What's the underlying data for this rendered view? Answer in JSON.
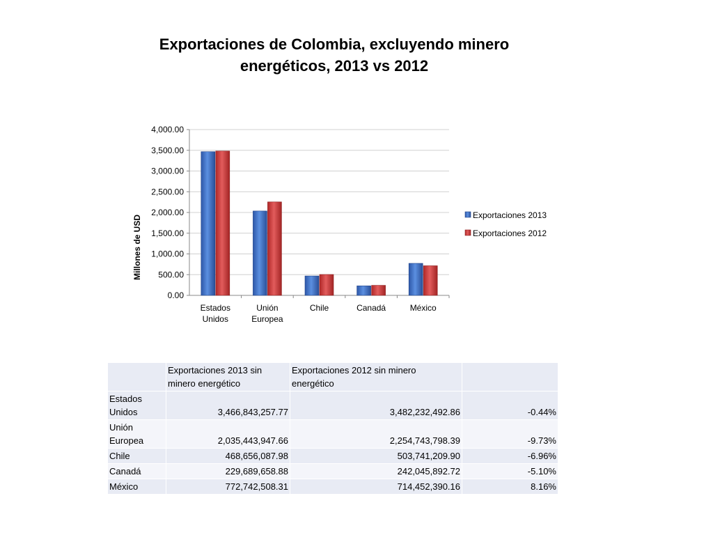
{
  "page": {
    "title_line1": "Exportaciones de Colombia, excluyendo minero",
    "title_line2": "energéticos,  2013 vs 2012"
  },
  "chart_data": {
    "type": "bar",
    "ylabel": "Millones de USD",
    "xlabel": "",
    "categories": [
      [
        "Estados",
        "Unidos"
      ],
      [
        "Unión",
        "Europea"
      ],
      [
        "Chile"
      ],
      [
        "Canadá"
      ],
      [
        "México"
      ]
    ],
    "series": [
      {
        "name": "Exportaciones 2013",
        "values": [
          3466.84,
          2035.44,
          468.66,
          229.69,
          772.74
        ],
        "color": "#3a6fc8"
      },
      {
        "name": "Exportaciones 2012",
        "values": [
          3482.23,
          2254.74,
          503.74,
          242.05,
          714.45
        ],
        "color": "#cc3a3a"
      }
    ],
    "ylim": [
      0,
      4000
    ],
    "yticks": [
      "0.00",
      "500.00",
      "1,000.00",
      "1,500.00",
      "2,000.00",
      "2,500.00",
      "3,000.00",
      "3,500.00",
      "4,000.00"
    ],
    "grid": true,
    "legend_position": "right"
  },
  "table": {
    "headers": [
      "",
      "Exportaciones 2013 sin minero energético",
      "Exportaciones 2012 sin minero energético",
      ""
    ],
    "rows": [
      {
        "name": "Estados Unidos",
        "v2013": "3,466,843,257.77",
        "v2012": "3,482,232,492.86",
        "change": "-0.44%"
      },
      {
        "name": "Unión Europea",
        "v2013": "2,035,443,947.66",
        "v2012": "2,254,743,798.39",
        "change": "-9.73%"
      },
      {
        "name": "Chile",
        "v2013": "468,656,087.98",
        "v2012": "503,741,209.90",
        "change": "-6.96%"
      },
      {
        "name": "Canadá",
        "v2013": "229,689,658.88",
        "v2012": "242,045,892.72",
        "change": "-5.10%"
      },
      {
        "name": "México",
        "v2013": "772,742,508.31",
        "v2012": "714,452,390.16",
        "change": "8.16%"
      }
    ]
  }
}
